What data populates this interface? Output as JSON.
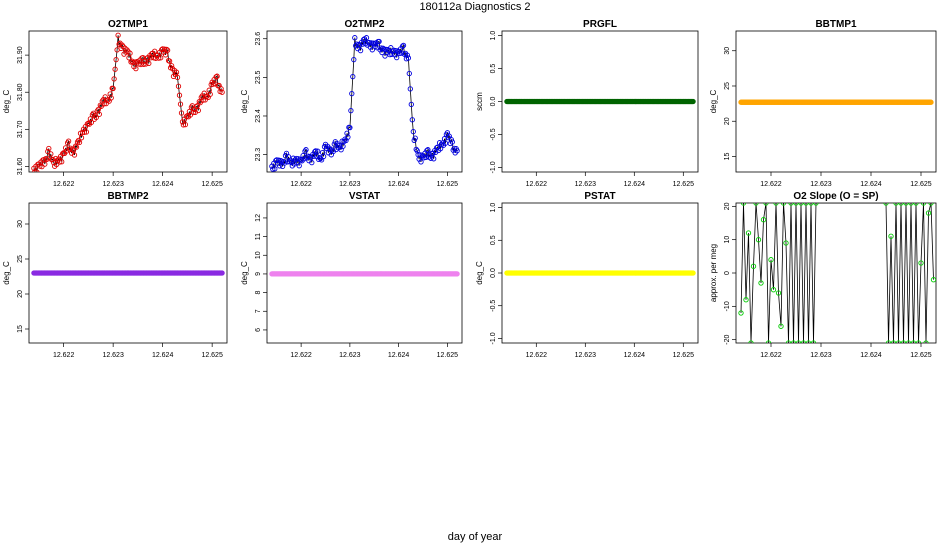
{
  "page": {
    "title": "180112a   Diagnostics 2",
    "xlabel": "day of year"
  },
  "chart_data": [
    {
      "type": "scatter",
      "title": "O2TMP1",
      "ylabel": "deg_C",
      "color": "#e00000",
      "dots": "ring",
      "xlim": [
        12.6213,
        12.6253
      ],
      "ylim": [
        31.585,
        31.965
      ],
      "xticks": [
        "12.622",
        "12.623",
        "12.624",
        "12.625"
      ],
      "yticks": [
        "31.60",
        "31.70",
        "31.80",
        "31.90"
      ],
      "x": [
        12.6214,
        12.6215,
        12.6216,
        12.6217,
        12.6218,
        12.6219,
        12.622,
        12.6221,
        12.6222,
        12.6223,
        12.6224,
        12.6225,
        12.6226,
        12.6227,
        12.6228,
        12.6229,
        12.623,
        12.6231,
        12.6232,
        12.6233,
        12.6234,
        12.6235,
        12.6236,
        12.6237,
        12.6238,
        12.6239,
        12.624,
        12.6241,
        12.6242,
        12.6243,
        12.6244,
        12.6245,
        12.6246,
        12.6247,
        12.6248,
        12.6249,
        12.625,
        12.6251,
        12.6252
      ],
      "y": [
        31.595,
        31.6,
        31.605,
        31.645,
        31.6,
        31.62,
        31.63,
        31.655,
        31.64,
        31.66,
        31.7,
        31.71,
        31.73,
        31.75,
        31.77,
        31.78,
        31.81,
        31.94,
        31.92,
        31.9,
        31.88,
        31.875,
        31.88,
        31.89,
        31.895,
        31.9,
        31.91,
        31.9,
        31.86,
        31.84,
        31.72,
        31.73,
        31.75,
        31.76,
        31.78,
        31.79,
        31.82,
        31.83,
        31.8
      ]
    },
    {
      "type": "scatter",
      "title": "O2TMP2",
      "ylabel": "deg_C",
      "color": "#0000e0",
      "dots": "ring",
      "xlim": [
        12.6213,
        12.6253
      ],
      "ylim": [
        23.255,
        23.62
      ],
      "xticks": [
        "12.622",
        "12.623",
        "12.624",
        "12.625"
      ],
      "yticks": [
        "23.3",
        "23.4",
        "23.5",
        "23.6"
      ],
      "x": [
        12.6214,
        12.6215,
        12.6216,
        12.6217,
        12.6218,
        12.6219,
        12.622,
        12.6221,
        12.6222,
        12.6223,
        12.6224,
        12.6225,
        12.6226,
        12.6227,
        12.6228,
        12.6229,
        12.623,
        12.6231,
        12.6232,
        12.6233,
        12.6234,
        12.6235,
        12.6236,
        12.6237,
        12.6238,
        12.6239,
        12.624,
        12.6241,
        12.6242,
        12.6243,
        12.6244,
        12.6245,
        12.6246,
        12.6247,
        12.6248,
        12.6249,
        12.625,
        12.6251,
        12.6252
      ],
      "y": [
        23.27,
        23.28,
        23.27,
        23.3,
        23.27,
        23.29,
        23.28,
        23.3,
        23.29,
        23.3,
        23.29,
        23.32,
        23.3,
        23.33,
        23.31,
        23.34,
        23.37,
        23.59,
        23.58,
        23.59,
        23.59,
        23.58,
        23.58,
        23.57,
        23.56,
        23.57,
        23.56,
        23.57,
        23.55,
        23.35,
        23.3,
        23.29,
        23.3,
        23.3,
        23.31,
        23.33,
        23.35,
        23.32,
        23.31
      ]
    },
    {
      "type": "scatter",
      "title": "PRGFL",
      "ylabel": "sccm",
      "color": "#006400",
      "dots": "dense",
      "xlim": [
        12.6213,
        12.6253
      ],
      "ylim": [
        -1.07,
        1.07
      ],
      "xticks": [
        "12.622",
        "12.623",
        "12.624",
        "12.625"
      ],
      "yticks": [
        "-1.0",
        "-0.5",
        "0.0",
        "0.5",
        "1.0"
      ],
      "x": [
        12.6214,
        12.6252
      ],
      "y": [
        0,
        0
      ]
    },
    {
      "type": "scatter",
      "title": "BBTMP1",
      "ylabel": "deg_C",
      "color": "#ffa500",
      "dots": "dense",
      "xlim": [
        12.6213,
        12.6253
      ],
      "ylim": [
        12.8,
        32.8
      ],
      "xticks": [
        "12.622",
        "12.623",
        "12.624",
        "12.625"
      ],
      "yticks": [
        "15",
        "20",
        "25",
        "30"
      ],
      "x": [
        12.6214,
        12.6252
      ],
      "y": [
        22.7,
        22.7
      ]
    },
    {
      "type": "scatter",
      "title": "BBTMP2",
      "ylabel": "deg_C",
      "color": "#8a2be2",
      "dots": "dense",
      "xlim": [
        12.6213,
        12.6253
      ],
      "ylim": [
        13,
        33
      ],
      "xticks": [
        "12.622",
        "12.623",
        "12.624",
        "12.625"
      ],
      "yticks": [
        "15",
        "20",
        "25",
        "30"
      ],
      "x": [
        12.6214,
        12.6252
      ],
      "y": [
        23,
        23
      ]
    },
    {
      "type": "scatter",
      "title": "VSTAT",
      "ylabel": "deg_C",
      "color": "#ee82ee",
      "dots": "dense",
      "xlim": [
        12.6213,
        12.6253
      ],
      "ylim": [
        5.3,
        12.8
      ],
      "xticks": [
        "12.622",
        "12.623",
        "12.624",
        "12.625"
      ],
      "yticks": [
        "6",
        "7",
        "8",
        "9",
        "10",
        "11",
        "12"
      ],
      "x": [
        12.6214,
        12.6252
      ],
      "y": [
        9,
        9
      ]
    },
    {
      "type": "scatter",
      "title": "PSTAT",
      "ylabel": "deg_C",
      "color": "#ffff00",
      "dots": "dense",
      "xlim": [
        12.6213,
        12.6253
      ],
      "ylim": [
        -1.07,
        1.07
      ],
      "xticks": [
        "12.622",
        "12.623",
        "12.624",
        "12.625"
      ],
      "yticks": [
        "-1.0",
        "-0.5",
        "0.0",
        "0.5",
        "1.0"
      ],
      "x": [
        12.6214,
        12.6252
      ],
      "y": [
        0,
        0
      ]
    },
    {
      "type": "scatter",
      "title": "O2 Slope (O = SP)",
      "ylabel": "approx. per meg",
      "color": "#00cc00",
      "dots": "ring",
      "oscillating": true,
      "xlim": [
        12.6213,
        12.6253
      ],
      "ylim": [
        -21,
        21
      ],
      "xticks": [
        "12.622",
        "12.623",
        "12.624",
        "12.625"
      ],
      "yticks": [
        "-20",
        "-10",
        "0",
        "10",
        "20"
      ],
      "x": [
        12.6214,
        12.62145,
        12.6215,
        12.62155,
        12.6216,
        12.62165,
        12.6217,
        12.62175,
        12.6218,
        12.62185,
        12.6219,
        12.62195,
        12.622,
        12.62205,
        12.6221,
        12.62215,
        12.6222,
        12.62225,
        12.6223,
        12.62235,
        12.6224,
        12.62245,
        12.6225,
        12.62255,
        12.6226,
        12.62265,
        12.6227,
        12.62275,
        12.6228,
        12.62285,
        12.6229,
        12.6243,
        12.62435,
        12.6244,
        12.62445,
        12.6245,
        12.62455,
        12.6246,
        12.62465,
        12.6247,
        12.62475,
        12.6248,
        12.62485,
        12.6249,
        12.62495,
        12.625,
        12.62505,
        12.6251,
        12.62515,
        12.6252,
        12.62525
      ],
      "y": [
        -12,
        21,
        -8,
        12,
        -21,
        2,
        21,
        10,
        -3,
        16,
        21,
        -21,
        4,
        -5,
        21,
        -6,
        -16,
        21,
        9,
        -21,
        21,
        -21,
        21,
        -21,
        21,
        -21,
        21,
        -21,
        21,
        -21,
        21,
        21,
        -21,
        11,
        -21,
        21,
        -21,
        21,
        -21,
        21,
        -21,
        21,
        -21,
        21,
        -21,
        3,
        21,
        -21,
        18,
        21,
        -2
      ]
    }
  ]
}
